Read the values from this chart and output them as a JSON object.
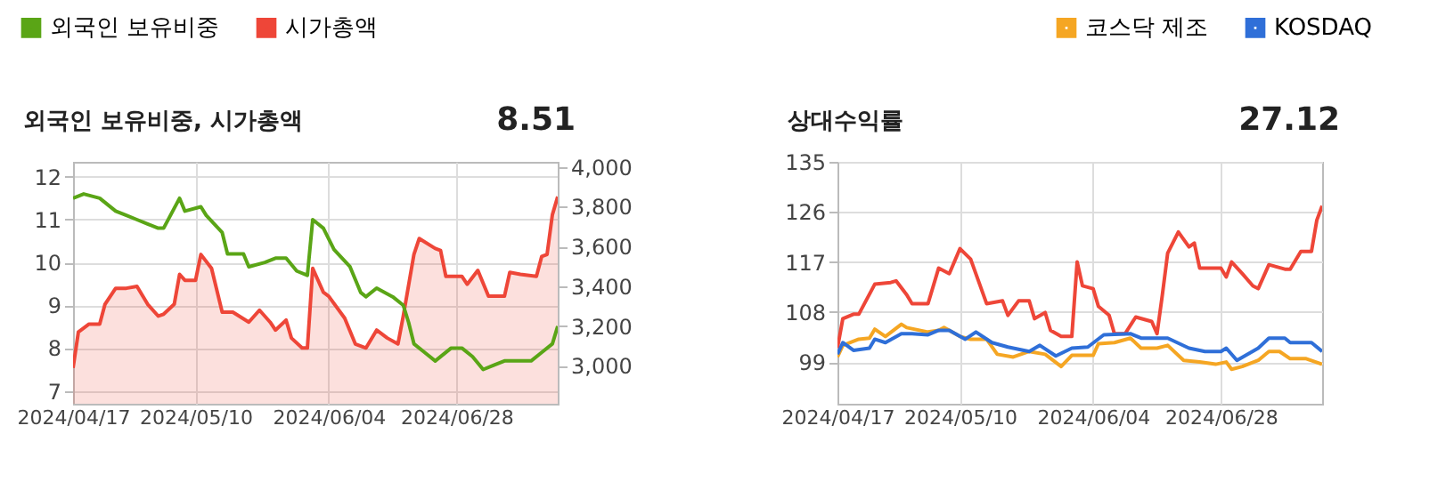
{
  "chart_data": [
    {
      "type": "line",
      "title": "외국인 보유비중, 시가총액",
      "annotations": [
        "8.51"
      ],
      "legend": "top left",
      "grid": true,
      "xlim": [
        "2024-04-17",
        "2024-07-17"
      ],
      "xticks": [
        {
          "value": "2024-04-17",
          "label": "2024/04/17"
        },
        {
          "value": "2024-05-10",
          "label": "2024/05/10"
        },
        {
          "value": "2024-06-04",
          "label": "2024/06/04"
        },
        {
          "value": "2024-06-28",
          "label": "2024/06/28"
        }
      ],
      "ylim": [
        6.7,
        12.35
      ],
      "yticks": [
        7,
        8,
        9,
        10,
        11,
        12
      ],
      "y2lim": [
        2810,
        4025
      ],
      "y2ticks": [
        {
          "value": 3000,
          "label": "3,000"
        },
        {
          "value": 3200,
          "label": "3,200"
        },
        {
          "value": 3400,
          "label": "3,400"
        },
        {
          "value": 3600,
          "label": "3,600"
        },
        {
          "value": 3800,
          "label": "3,800"
        },
        {
          "value": 4000,
          "label": "4,000"
        }
      ],
      "series": [
        {
          "name": "외국인 보유비중",
          "color": "#5aa516",
          "type": "line",
          "x": [
            "2024-04-17",
            "2024-04-19",
            "2024-04-22",
            "2024-04-25",
            "2024-04-27",
            "2024-04-29",
            "2024-05-01",
            "2024-05-03",
            "2024-05-04",
            "2024-05-07",
            "2024-05-08",
            "2024-05-11",
            "2024-05-12",
            "2024-05-15",
            "2024-05-16",
            "2024-05-19",
            "2024-05-20",
            "2024-05-23",
            "2024-05-25",
            "2024-05-27",
            "2024-05-29",
            "2024-05-31",
            "2024-06-01",
            "2024-06-03",
            "2024-06-05",
            "2024-06-08",
            "2024-06-10",
            "2024-06-11",
            "2024-06-13",
            "2024-06-16",
            "2024-06-18",
            "2024-06-19",
            "2024-06-20",
            "2024-06-22",
            "2024-06-24",
            "2024-06-27",
            "2024-06-29",
            "2024-07-01",
            "2024-07-03",
            "2024-07-05",
            "2024-07-07",
            "2024-07-12",
            "2024-07-14",
            "2024-07-16",
            "2024-07-17"
          ],
          "values": [
            11.5,
            11.6,
            11.5,
            11.2,
            11.1,
            11.0,
            10.9,
            10.8,
            10.8,
            11.5,
            11.2,
            11.3,
            11.1,
            10.7,
            10.2,
            10.2,
            9.9,
            10.0,
            10.1,
            10.1,
            9.8,
            9.7,
            11.0,
            10.8,
            10.3,
            9.9,
            9.3,
            9.2,
            9.4,
            9.2,
            9.0,
            8.6,
            8.1,
            7.9,
            7.7,
            8.0,
            8.0,
            7.8,
            7.5,
            7.6,
            7.7,
            7.7,
            7.9,
            8.1,
            8.51
          ]
        },
        {
          "name": "시가총액",
          "color": "#ee4638",
          "type": "area",
          "axis": "y2",
          "x": [
            "2024-04-17",
            "2024-04-18",
            "2024-04-20",
            "2024-04-22",
            "2024-04-23",
            "2024-04-25",
            "2024-04-27",
            "2024-04-29",
            "2024-05-01",
            "2024-05-03",
            "2024-05-04",
            "2024-05-06",
            "2024-05-07",
            "2024-05-08",
            "2024-05-10",
            "2024-05-11",
            "2024-05-13",
            "2024-05-15",
            "2024-05-17",
            "2024-05-20",
            "2024-05-22",
            "2024-05-24",
            "2024-05-25",
            "2024-05-27",
            "2024-05-28",
            "2024-05-30",
            "2024-05-31",
            "2024-06-01",
            "2024-06-03",
            "2024-06-04",
            "2024-06-07",
            "2024-06-09",
            "2024-06-11",
            "2024-06-13",
            "2024-06-15",
            "2024-06-17",
            "2024-06-18",
            "2024-06-20",
            "2024-06-21",
            "2024-06-24",
            "2024-06-25",
            "2024-06-26",
            "2024-06-29",
            "2024-06-30",
            "2024-07-02",
            "2024-07-04",
            "2024-07-07",
            "2024-07-08",
            "2024-07-10",
            "2024-07-13",
            "2024-07-14",
            "2024-07-15",
            "2024-07-16",
            "2024-07-17"
          ],
          "values": [
            2990,
            3170,
            3210,
            3210,
            3310,
            3390,
            3390,
            3400,
            3310,
            3250,
            3260,
            3310,
            3460,
            3430,
            3430,
            3560,
            3490,
            3270,
            3270,
            3220,
            3280,
            3220,
            3180,
            3230,
            3140,
            3090,
            3090,
            3490,
            3370,
            3350,
            3240,
            3110,
            3090,
            3180,
            3140,
            3110,
            3250,
            3560,
            3640,
            3590,
            3580,
            3450,
            3450,
            3410,
            3480,
            3350,
            3350,
            3470,
            3460,
            3450,
            3550,
            3560,
            3760,
            3850
          ]
        }
      ]
    },
    {
      "type": "line",
      "title": "상대수익률",
      "annotations": [
        "27.12"
      ],
      "legend": "top right",
      "grid": true,
      "xlim": [
        "2024-04-17",
        "2024-07-17"
      ],
      "xticks": [
        {
          "value": "2024-04-17",
          "label": "2024/04/17"
        },
        {
          "value": "2024-05-10",
          "label": "2024/05/10"
        },
        {
          "value": "2024-06-04",
          "label": "2024/06/04"
        },
        {
          "value": "2024-06-28",
          "label": "2024/06/28"
        }
      ],
      "ylim": [
        91.5,
        135
      ],
      "yticks": [
        99,
        108,
        117,
        126,
        135
      ],
      "series": [
        {
          "color": "#ee4638",
          "x": [
            "2024-04-17",
            "2024-04-18",
            "2024-04-20",
            "2024-04-21",
            "2024-04-24",
            "2024-04-27",
            "2024-04-28",
            "2024-04-30",
            "2024-05-01",
            "2024-05-04",
            "2024-05-06",
            "2024-05-08",
            "2024-05-10",
            "2024-05-12",
            "2024-05-15",
            "2024-05-18",
            "2024-05-19",
            "2024-05-21",
            "2024-05-23",
            "2024-05-24",
            "2024-05-26",
            "2024-05-27",
            "2024-05-29",
            "2024-05-31",
            "2024-06-01",
            "2024-06-02",
            "2024-06-04",
            "2024-06-05",
            "2024-06-07",
            "2024-06-08",
            "2024-06-10",
            "2024-06-12",
            "2024-06-15",
            "2024-06-16",
            "2024-06-17",
            "2024-06-18",
            "2024-06-20",
            "2024-06-22",
            "2024-06-23",
            "2024-06-24",
            "2024-06-28",
            "2024-06-29",
            "2024-06-30",
            "2024-07-02",
            "2024-07-04",
            "2024-07-05",
            "2024-07-07",
            "2024-07-10",
            "2024-07-11",
            "2024-07-13",
            "2024-07-15",
            "2024-07-16",
            "2024-07-17"
          ],
          "values": [
            101.5,
            106.8,
            107.6,
            107.6,
            113.0,
            113.3,
            113.6,
            111.1,
            109.5,
            109.5,
            115.9,
            114.9,
            119.4,
            117.5,
            109.5,
            110.0,
            107.4,
            110.0,
            110.0,
            106.8,
            107.9,
            104.7,
            103.6,
            103.6,
            117.0,
            112.7,
            112.2,
            109.0,
            107.4,
            104.1,
            104.1,
            107.1,
            106.3,
            104.1,
            111.1,
            118.6,
            122.4,
            119.7,
            120.4,
            115.9,
            115.9,
            114.3,
            117.0,
            114.9,
            112.7,
            112.2,
            116.5,
            115.7,
            115.7,
            118.9,
            118.9,
            124.5,
            127.1
          ]
        },
        {
          "name": "코스닥 제조",
          "color": "#f5a623",
          "x": [
            "2024-04-17",
            "2024-04-18",
            "2024-04-21",
            "2024-04-23",
            "2024-04-24",
            "2024-04-26",
            "2024-04-29",
            "2024-04-30",
            "2024-05-04",
            "2024-05-06",
            "2024-05-07",
            "2024-05-10",
            "2024-05-12",
            "2024-05-15",
            "2024-05-17",
            "2024-05-20",
            "2024-05-23",
            "2024-05-26",
            "2024-05-29",
            "2024-05-31",
            "2024-06-04",
            "2024-06-05",
            "2024-06-08",
            "2024-06-11",
            "2024-06-13",
            "2024-06-16",
            "2024-06-18",
            "2024-06-21",
            "2024-06-24",
            "2024-06-27",
            "2024-06-29",
            "2024-06-30",
            "2024-07-02",
            "2024-07-05",
            "2024-07-07",
            "2024-07-09",
            "2024-07-11",
            "2024-07-14",
            "2024-07-17"
          ],
          "values": [
            99.9,
            102.0,
            103.1,
            103.3,
            104.9,
            103.6,
            105.8,
            105.2,
            104.4,
            104.7,
            105.2,
            103.6,
            103.1,
            103.1,
            100.4,
            99.9,
            100.9,
            100.4,
            98.2,
            100.2,
            100.2,
            102.3,
            102.5,
            103.3,
            101.5,
            101.5,
            102.0,
            99.3,
            99.0,
            98.6,
            99.0,
            97.7,
            98.2,
            99.3,
            100.9,
            100.9,
            99.6,
            99.6,
            98.6
          ]
        },
        {
          "name": "KOSDAQ",
          "color": "#2f6fd8",
          "x": [
            "2024-04-17",
            "2024-04-18",
            "2024-04-20",
            "2024-04-23",
            "2024-04-24",
            "2024-04-26",
            "2024-04-29",
            "2024-05-01",
            "2024-05-04",
            "2024-05-06",
            "2024-05-08",
            "2024-05-11",
            "2024-05-13",
            "2024-05-16",
            "2024-05-19",
            "2024-05-23",
            "2024-05-25",
            "2024-05-28",
            "2024-05-31",
            "2024-06-03",
            "2024-06-06",
            "2024-06-11",
            "2024-06-13",
            "2024-06-18",
            "2024-06-22",
            "2024-06-25",
            "2024-06-28",
            "2024-06-29",
            "2024-07-01",
            "2024-07-05",
            "2024-07-07",
            "2024-07-10",
            "2024-07-11",
            "2024-07-15",
            "2024-07-17"
          ],
          "values": [
            100.4,
            102.5,
            101.1,
            101.5,
            103.1,
            102.5,
            104.1,
            104.1,
            103.9,
            104.7,
            104.7,
            103.1,
            104.4,
            102.5,
            101.7,
            100.9,
            102.0,
            100.1,
            101.5,
            101.7,
            103.9,
            104.1,
            103.3,
            103.3,
            101.5,
            100.9,
            100.9,
            101.5,
            99.3,
            101.5,
            103.3,
            103.3,
            102.5,
            102.5,
            100.9
          ]
        }
      ]
    }
  ]
}
